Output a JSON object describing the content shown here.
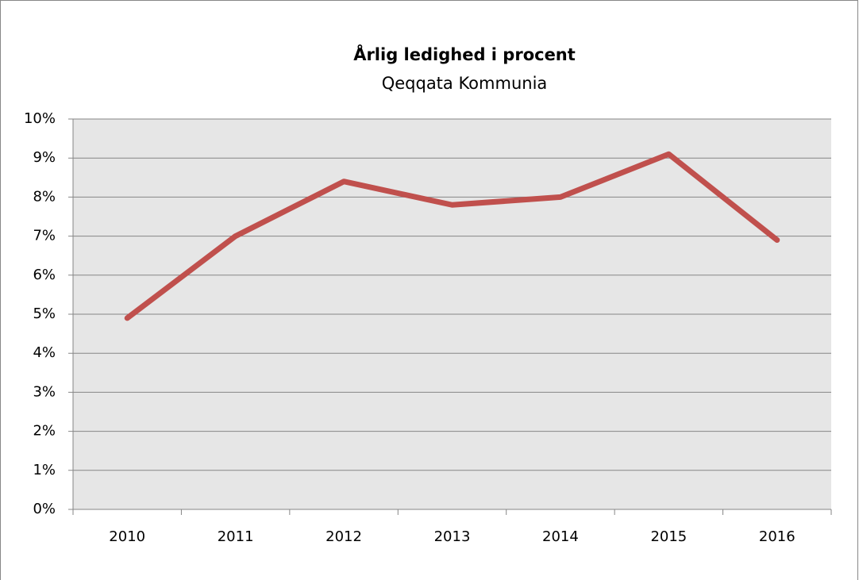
{
  "chart_data": {
    "type": "line",
    "title": "Årlig ledighed i procent",
    "subtitle": "Qeqqata Kommunia",
    "categories": [
      "2010",
      "2011",
      "2012",
      "2013",
      "2014",
      "2015",
      "2016"
    ],
    "values": [
      4.9,
      7.0,
      8.4,
      7.8,
      8.0,
      9.1,
      6.9
    ],
    "color": "#c0504d",
    "ylim": [
      0,
      10
    ],
    "yticks": [
      {
        "value": 0,
        "label": "0%"
      },
      {
        "value": 1,
        "label": "1%"
      },
      {
        "value": 2,
        "label": "2%"
      },
      {
        "value": 3,
        "label": "3%"
      },
      {
        "value": 4,
        "label": "4%"
      },
      {
        "value": 5,
        "label": "5%"
      },
      {
        "value": 6,
        "label": "6%"
      },
      {
        "value": 7,
        "label": "7%"
      },
      {
        "value": 8,
        "label": "8%"
      },
      {
        "value": 9,
        "label": "9%"
      },
      {
        "value": 10,
        "label": "10%"
      }
    ],
    "grid": true
  }
}
